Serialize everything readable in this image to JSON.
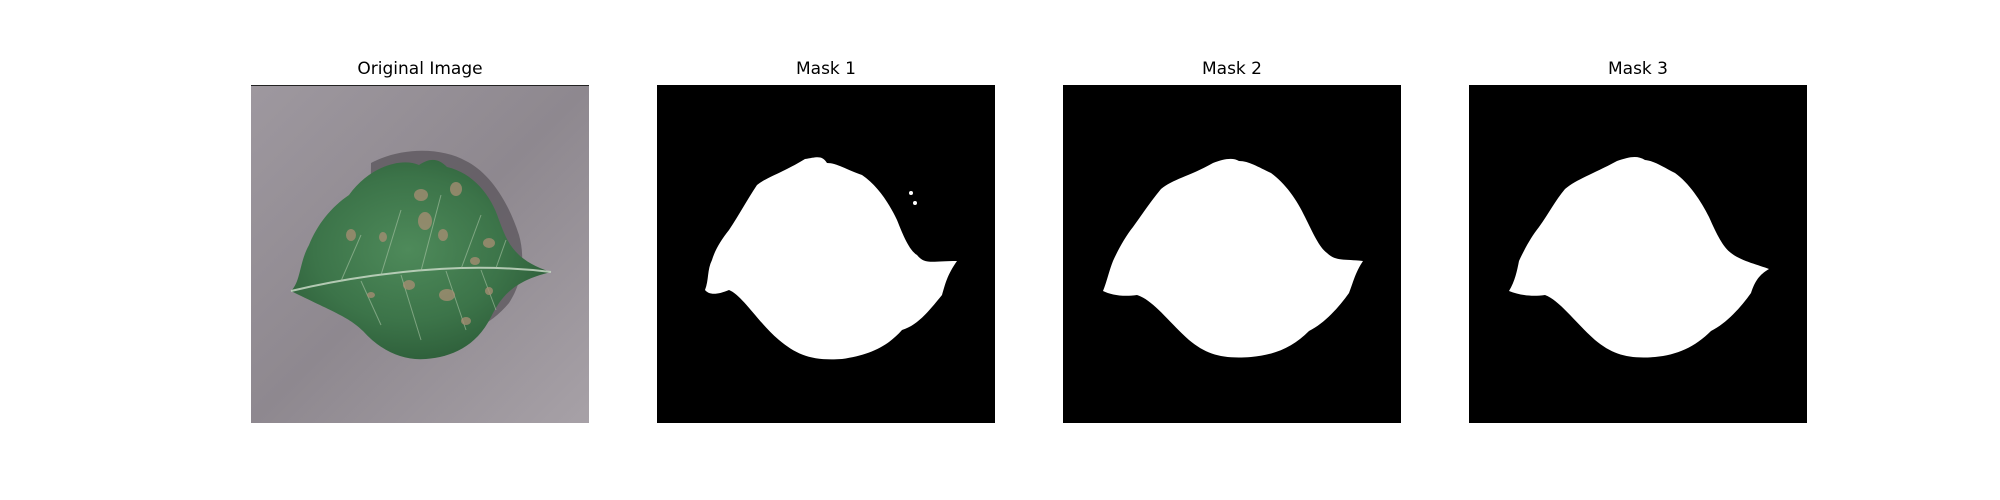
{
  "figure": {
    "panels": [
      {
        "title": "Original Image"
      },
      {
        "title": "Mask 1"
      },
      {
        "title": "Mask 2"
      },
      {
        "title": "Mask 3"
      }
    ]
  },
  "colors": {
    "mask_background": "#000000",
    "mask_foreground": "#ffffff",
    "leaf_green": "#3f7d4c",
    "backdrop_gray": "#958f96"
  }
}
